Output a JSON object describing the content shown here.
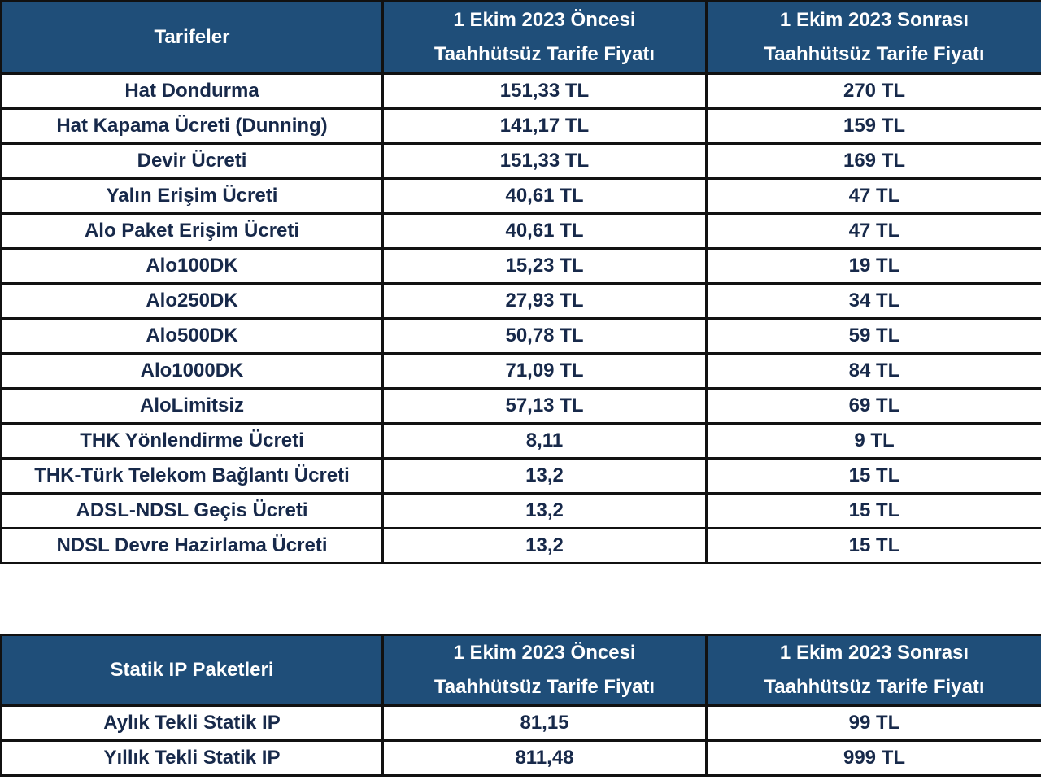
{
  "tables": [
    {
      "header": [
        [
          "Tarifeler"
        ],
        [
          "1 Ekim 2023 Öncesi",
          "Taahhütsüz Tarife Fiyatı"
        ],
        [
          "1 Ekim 2023 Sonrası",
          "Taahhütsüz Tarife Fiyatı"
        ]
      ],
      "rows": [
        [
          "Hat Dondurma",
          "151,33 TL",
          "270 TL"
        ],
        [
          "Hat Kapama Ücreti (Dunning)",
          "141,17 TL",
          "159 TL"
        ],
        [
          "Devir Ücreti",
          "151,33 TL",
          "169 TL"
        ],
        [
          "Yalın Erişim Ücreti",
          "40,61 TL",
          "47 TL"
        ],
        [
          "Alo Paket Erişim Ücreti",
          "40,61 TL",
          "47 TL"
        ],
        [
          "Alo100DK",
          "15,23 TL",
          "19 TL"
        ],
        [
          "Alo250DK",
          "27,93 TL",
          "34 TL"
        ],
        [
          "Alo500DK",
          "50,78 TL",
          "59 TL"
        ],
        [
          "Alo1000DK",
          "71,09 TL",
          "84 TL"
        ],
        [
          "AloLimitsiz",
          "57,13 TL",
          "69 TL"
        ],
        [
          "THK Yönlendirme Ücreti",
          "8,11",
          "9 TL"
        ],
        [
          "THK-Türk Telekom Bağlantı Ücreti",
          "13,2",
          "15 TL"
        ],
        [
          "ADSL-NDSL Geçis Ücreti",
          "13,2",
          "15 TL"
        ],
        [
          "NDSL Devre Hazirlama Ücreti",
          "13,2",
          "15 TL"
        ]
      ]
    },
    {
      "header": [
        [
          "Statik IP Paketleri"
        ],
        [
          "1 Ekim 2023 Öncesi",
          "Taahhütsüz Tarife Fiyatı"
        ],
        [
          "1 Ekim 2023 Sonrası",
          "Taahhütsüz Tarife Fiyatı"
        ]
      ],
      "rows": [
        [
          "Aylık Tekli Statik IP",
          "81,15",
          "99 TL"
        ],
        [
          "Yıllık Tekli Statik IP",
          "811,48",
          "999 TL"
        ]
      ]
    }
  ]
}
